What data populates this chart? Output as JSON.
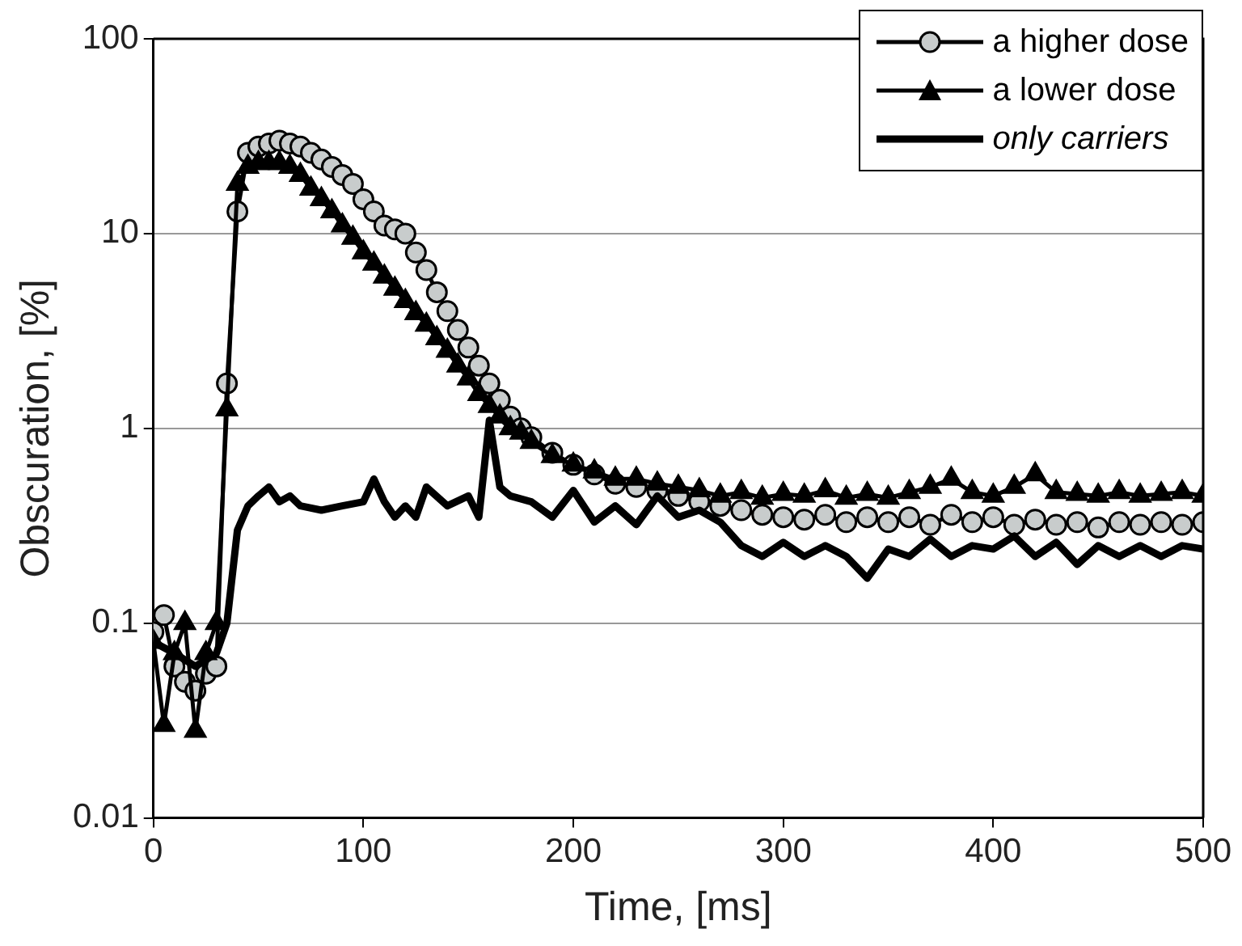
{
  "chart_data": {
    "type": "line",
    "xlabel": "Time, [ms]",
    "ylabel": "Obscuration, [%]",
    "log": "y",
    "grid": "y",
    "legend": "top right",
    "xlim": [
      0,
      500
    ],
    "xticks": [
      0,
      100,
      200,
      300,
      400,
      500
    ],
    "ylim": [
      0.01,
      100
    ],
    "yticks": [
      0.01,
      0.1,
      1,
      10,
      100
    ],
    "series": [
      {
        "name": "a higher dose",
        "color": "#000000",
        "marker": "circle",
        "x": [
          0,
          5,
          10,
          15,
          20,
          25,
          30,
          35,
          40,
          45,
          50,
          55,
          60,
          65,
          70,
          75,
          80,
          85,
          90,
          95,
          100,
          105,
          110,
          115,
          120,
          125,
          130,
          135,
          140,
          145,
          150,
          155,
          160,
          165,
          170,
          175,
          180,
          190,
          200,
          210,
          220,
          230,
          240,
          250,
          260,
          270,
          280,
          290,
          300,
          310,
          320,
          330,
          340,
          350,
          360,
          370,
          380,
          390,
          400,
          410,
          420,
          430,
          440,
          450,
          460,
          470,
          480,
          490,
          500
        ],
        "values": [
          0.09,
          0.11,
          0.06,
          0.05,
          0.045,
          0.055,
          0.06,
          1.7,
          13,
          26,
          28,
          29,
          30,
          29,
          28,
          26,
          24,
          22,
          20,
          18,
          15,
          13,
          11,
          10.5,
          10,
          8,
          6.5,
          5,
          4,
          3.2,
          2.6,
          2.1,
          1.7,
          1.4,
          1.15,
          1,
          0.9,
          0.75,
          0.65,
          0.58,
          0.52,
          0.5,
          0.48,
          0.45,
          0.42,
          0.4,
          0.38,
          0.36,
          0.35,
          0.34,
          0.36,
          0.33,
          0.35,
          0.33,
          0.35,
          0.32,
          0.36,
          0.33,
          0.35,
          0.32,
          0.34,
          0.32,
          0.33,
          0.31,
          0.33,
          0.32,
          0.33,
          0.32,
          0.33
        ]
      },
      {
        "name": "a lower dose",
        "color": "#000000",
        "marker": "triangle",
        "x": [
          0,
          5,
          10,
          15,
          20,
          25,
          30,
          35,
          40,
          45,
          50,
          55,
          60,
          65,
          70,
          75,
          80,
          85,
          90,
          95,
          100,
          105,
          110,
          115,
          120,
          125,
          130,
          135,
          140,
          145,
          150,
          155,
          160,
          165,
          170,
          175,
          180,
          190,
          200,
          210,
          220,
          230,
          240,
          250,
          260,
          270,
          280,
          290,
          300,
          310,
          320,
          330,
          340,
          350,
          360,
          370,
          380,
          390,
          400,
          410,
          420,
          430,
          440,
          450,
          460,
          470,
          480,
          490,
          500
        ],
        "values": [
          0.08,
          0.03,
          0.07,
          0.1,
          0.028,
          0.07,
          0.1,
          1.25,
          18,
          22,
          23,
          23,
          23,
          22,
          20,
          17,
          15,
          13,
          11,
          9.5,
          8,
          7,
          6,
          5.2,
          4.5,
          3.9,
          3.4,
          2.9,
          2.5,
          2.1,
          1.8,
          1.5,
          1.3,
          1.15,
          1,
          0.95,
          0.85,
          0.72,
          0.65,
          0.6,
          0.55,
          0.55,
          0.52,
          0.5,
          0.48,
          0.45,
          0.47,
          0.44,
          0.46,
          0.45,
          0.48,
          0.44,
          0.46,
          0.44,
          0.47,
          0.5,
          0.55,
          0.47,
          0.45,
          0.5,
          0.58,
          0.47,
          0.46,
          0.45,
          0.47,
          0.45,
          0.46,
          0.47,
          0.45
        ]
      },
      {
        "name": "only carriers",
        "color": "#000000",
        "marker": "none",
        "x": [
          0,
          10,
          20,
          30,
          35,
          40,
          45,
          50,
          55,
          60,
          65,
          70,
          80,
          90,
          100,
          105,
          110,
          115,
          120,
          125,
          130,
          140,
          150,
          155,
          160,
          165,
          170,
          180,
          190,
          200,
          210,
          220,
          230,
          240,
          250,
          260,
          270,
          280,
          290,
          300,
          310,
          320,
          330,
          340,
          350,
          360,
          370,
          380,
          390,
          400,
          410,
          420,
          430,
          440,
          450,
          460,
          470,
          480,
          490,
          500
        ],
        "values": [
          0.08,
          0.07,
          0.06,
          0.07,
          0.1,
          0.3,
          0.4,
          0.45,
          0.5,
          0.42,
          0.45,
          0.4,
          0.38,
          0.4,
          0.42,
          0.55,
          0.42,
          0.35,
          0.4,
          0.35,
          0.5,
          0.4,
          0.45,
          0.35,
          1.1,
          0.5,
          0.45,
          0.42,
          0.35,
          0.48,
          0.33,
          0.4,
          0.32,
          0.45,
          0.35,
          0.38,
          0.33,
          0.25,
          0.22,
          0.26,
          0.22,
          0.25,
          0.22,
          0.17,
          0.24,
          0.22,
          0.27,
          0.22,
          0.25,
          0.24,
          0.28,
          0.22,
          0.26,
          0.2,
          0.25,
          0.22,
          0.25,
          0.22,
          0.25,
          0.24
        ]
      }
    ]
  }
}
